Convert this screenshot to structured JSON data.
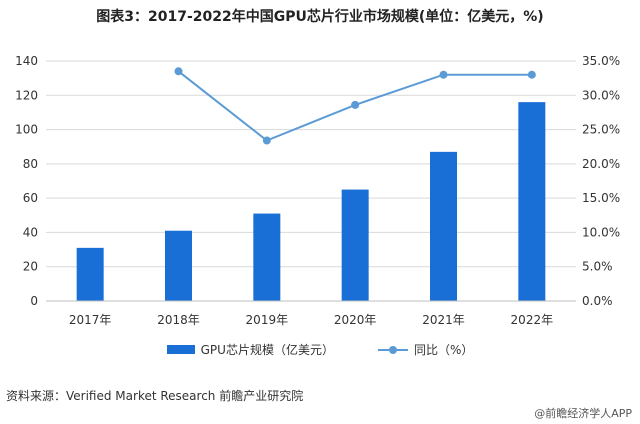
{
  "title": "图表3：2017-2022年中国GPU芯片行业市场规模(单位：亿美元，%)",
  "source": "资料来源：Verified Market Research 前瞻产业研究院",
  "brand": "@前瞻经济学人APP",
  "colors": {
    "bar": "#1a6fd6",
    "line": "#5b9bd5",
    "grid": "#d9d9d9"
  },
  "chart_data": {
    "type": "bar",
    "categories": [
      "2017年",
      "2018年",
      "2019年",
      "2020年",
      "2021年",
      "2022年"
    ],
    "series": [
      {
        "name": "GPU芯片规模（亿美元）",
        "type": "bar",
        "axis": "left",
        "values": [
          31,
          41,
          51,
          65,
          87,
          116
        ]
      },
      {
        "name": "同比（%）",
        "type": "line",
        "axis": "right",
        "values": [
          null,
          33.5,
          23.4,
          28.6,
          33.0,
          33.0
        ]
      }
    ],
    "ylim_left": [
      0,
      140
    ],
    "yticks_left": [
      "0",
      "20",
      "40",
      "60",
      "80",
      "100",
      "120",
      "140"
    ],
    "ylim_right": [
      0,
      35
    ],
    "yticks_right": [
      "0.0%",
      "5.0%",
      "10.0%",
      "15.0%",
      "20.0%",
      "25.0%",
      "30.0%",
      "35.0%"
    ],
    "grid": true,
    "legend": "bottom"
  }
}
